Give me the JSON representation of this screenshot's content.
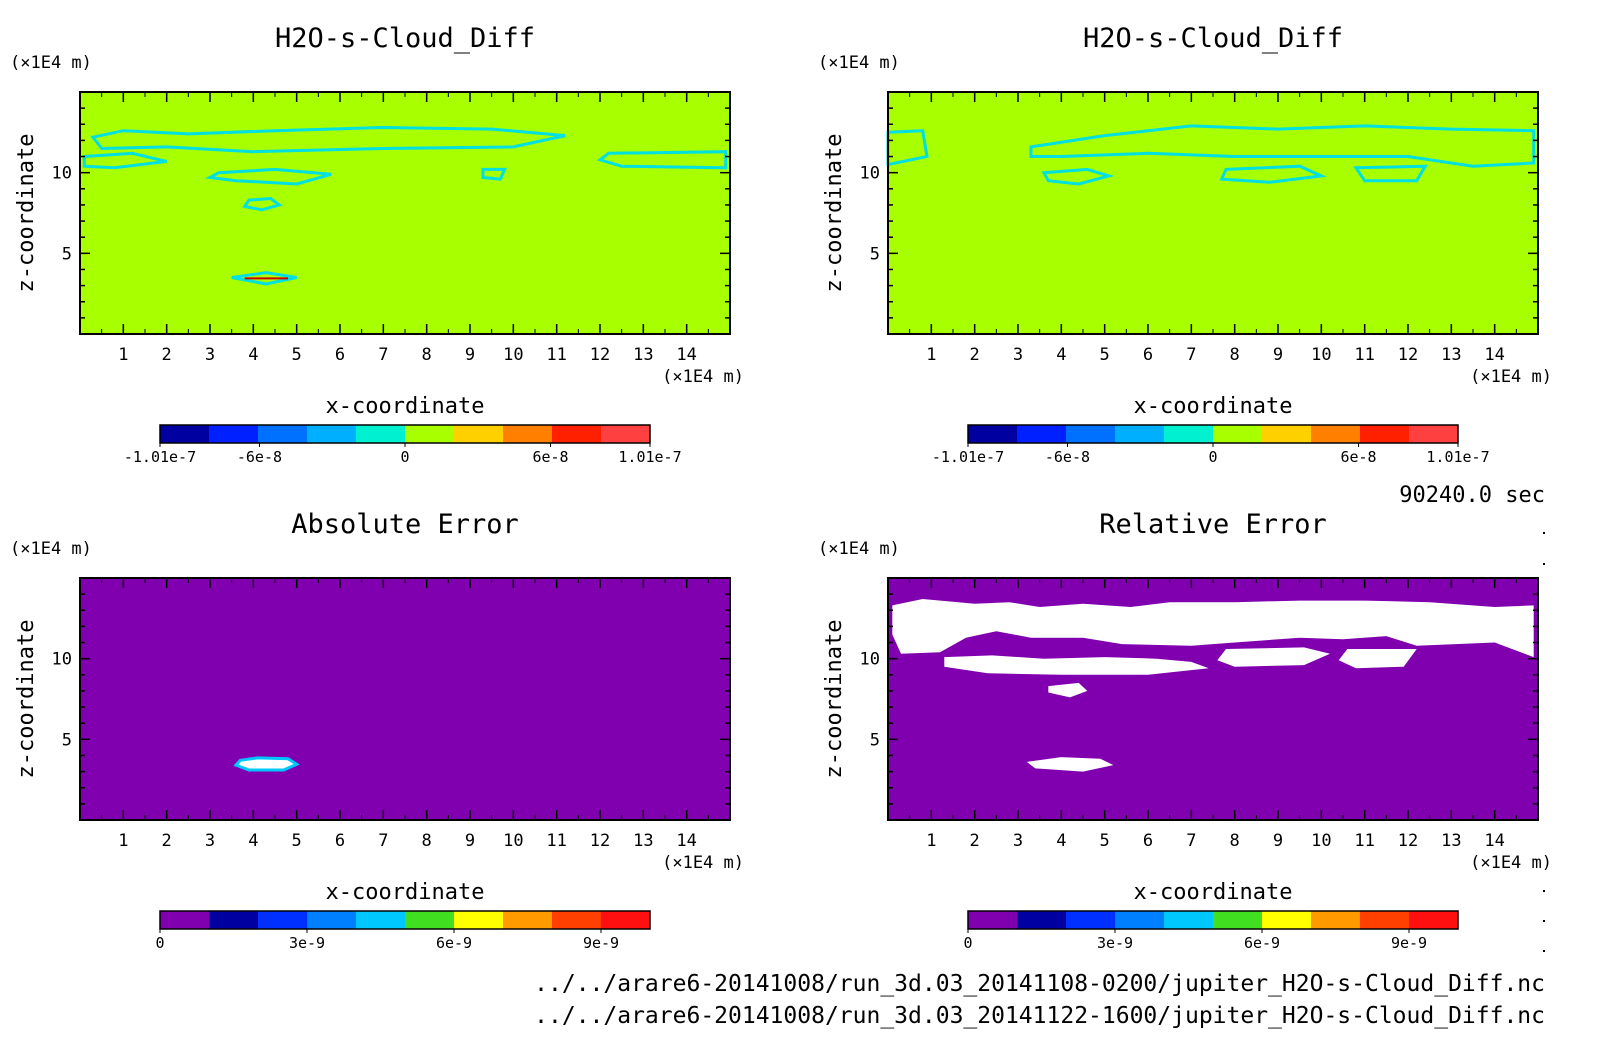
{
  "colors": {
    "diff_background": "#a8ff00",
    "diff_contour": "#00e0e0",
    "abs_background": "#8000b0",
    "rel_background": "#8000b0",
    "cloud_mask": "#ffffff",
    "diff_colorbar": [
      "#0000a0",
      "#0020ff",
      "#0070ff",
      "#00b0ff",
      "#00f0d0",
      "#a8ff00",
      "#ffd000",
      "#ff8000",
      "#ff2000",
      "#ff4040"
    ],
    "error_colorbar": [
      "#8000b0",
      "#0000a0",
      "#0030ff",
      "#0080ff",
      "#00c8ff",
      "#40e020",
      "#ffff00",
      "#ff9a00",
      "#ff4000",
      "#ff1010"
    ]
  },
  "time_label": "90240.0 sec",
  "source_files": [
    "../../arare6-20141008/run_3d.03_20141108-0200/jupiter_H2O-s-Cloud_Diff.nc",
    "../../arare6-20141008/run_3d.03_20141122-1600/jupiter_H2O-s-Cloud_Diff.nc"
  ],
  "chart_data": [
    {
      "type": "heatmap",
      "title": "H2O-s-Cloud_Diff",
      "xlabel": "x-coordinate",
      "ylabel": "z-coordinate",
      "x_unit": "(×1E4 m)",
      "y_unit": "(×1E4 m)",
      "xlim": [
        0,
        15
      ],
      "ylim": [
        0,
        15
      ],
      "xticks": [
        "1",
        "2",
        "3",
        "4",
        "5",
        "6",
        "7",
        "8",
        "9",
        "10",
        "11",
        "12",
        "13",
        "14"
      ],
      "yticks": [
        "5",
        "10"
      ],
      "colorbar_ticks": [
        "-1.01e-7",
        "-6e-8",
        "0",
        "6e-8",
        "1.01e-7"
      ],
      "clim": [
        -1.01e-07,
        1.01e-07
      ],
      "dominant_value": 0
    },
    {
      "type": "heatmap",
      "title": "H2O-s-Cloud_Diff",
      "xlabel": "x-coordinate",
      "ylabel": "z-coordinate",
      "x_unit": "(×1E4 m)",
      "y_unit": "(×1E4 m)",
      "xlim": [
        0,
        15
      ],
      "ylim": [
        0,
        15
      ],
      "xticks": [
        "1",
        "2",
        "3",
        "4",
        "5",
        "6",
        "7",
        "8",
        "9",
        "10",
        "11",
        "12",
        "13",
        "14"
      ],
      "yticks": [
        "5",
        "10"
      ],
      "colorbar_ticks": [
        "-1.01e-7",
        "-6e-8",
        "0",
        "6e-8",
        "1.01e-7"
      ],
      "clim": [
        -1.01e-07,
        1.01e-07
      ],
      "dominant_value": 0
    },
    {
      "type": "heatmap",
      "title": "Absolute Error",
      "xlabel": "x-coordinate",
      "ylabel": "z-coordinate",
      "x_unit": "(×1E4 m)",
      "y_unit": "(×1E4 m)",
      "xlim": [
        0,
        15
      ],
      "ylim": [
        0,
        15
      ],
      "xticks": [
        "1",
        "2",
        "3",
        "4",
        "5",
        "6",
        "7",
        "8",
        "9",
        "10",
        "11",
        "12",
        "13",
        "14"
      ],
      "yticks": [
        "5",
        "10"
      ],
      "colorbar_ticks": [
        "0",
        "3e-9",
        "6e-9",
        "9e-9"
      ],
      "clim": [
        0,
        1e-08
      ],
      "dominant_value": 0
    },
    {
      "type": "heatmap",
      "title": "Relative Error",
      "xlabel": "x-coordinate",
      "ylabel": "z-coordinate",
      "x_unit": "(×1E4 m)",
      "y_unit": "(×1E4 m)",
      "xlim": [
        0,
        15
      ],
      "ylim": [
        0,
        15
      ],
      "xticks": [
        "1",
        "2",
        "3",
        "4",
        "5",
        "6",
        "7",
        "8",
        "9",
        "10",
        "11",
        "12",
        "13",
        "14"
      ],
      "yticks": [
        "5",
        "10"
      ],
      "colorbar_ticks": [
        "0",
        "3e-9",
        "6e-9",
        "9e-9"
      ],
      "clim": [
        0,
        1e-08
      ],
      "dominant_value": 0
    }
  ]
}
